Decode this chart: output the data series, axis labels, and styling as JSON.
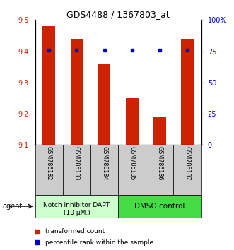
{
  "title": "GDS4488 / 1367803_at",
  "samples": [
    "GSM786182",
    "GSM786183",
    "GSM786184",
    "GSM786185",
    "GSM786186",
    "GSM786187"
  ],
  "bar_values": [
    9.48,
    9.44,
    9.36,
    9.25,
    9.19,
    9.44
  ],
  "percentile_values": [
    76,
    76,
    76,
    76,
    76,
    76
  ],
  "bar_bottom": 9.1,
  "ylim_left": [
    9.1,
    9.5
  ],
  "ylim_right": [
    0,
    100
  ],
  "yticks_left": [
    9.1,
    9.2,
    9.3,
    9.4,
    9.5
  ],
  "yticks_right": [
    0,
    25,
    50,
    75,
    100
  ],
  "ytick_labels_right": [
    "0",
    "25",
    "50",
    "75",
    "100%"
  ],
  "bar_color": "#cc2200",
  "percentile_color": "#0000cc",
  "group1_label_line1": "Notch inhibitor DAPT",
  "group1_label_line2": "(10 μM.)",
  "group2_label": "DMSO control",
  "group1_color": "#ccffcc",
  "group2_color": "#44dd44",
  "sample_box_color": "#cccccc",
  "legend_bar_label": "transformed count",
  "legend_pct_label": "percentile rank within the sample",
  "agent_label": "agent",
  "figwidth": 3.31,
  "figheight": 3.54,
  "dpi": 100
}
